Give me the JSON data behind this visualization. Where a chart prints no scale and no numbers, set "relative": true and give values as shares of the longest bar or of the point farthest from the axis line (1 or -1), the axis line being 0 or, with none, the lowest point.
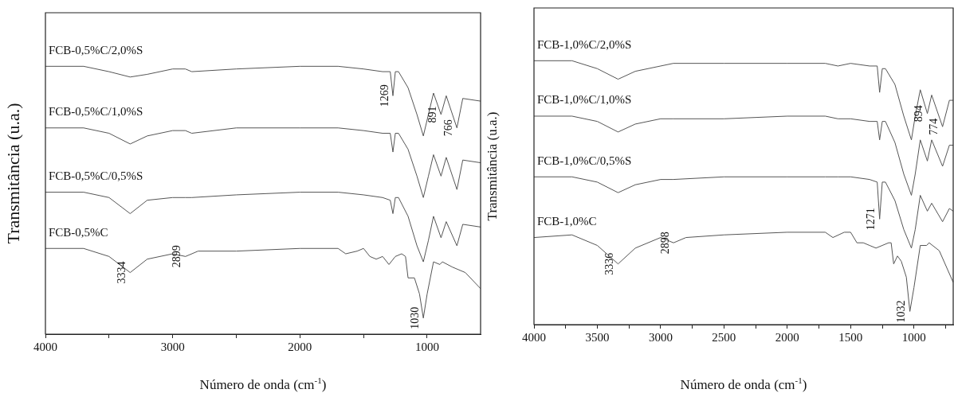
{
  "chart_data": [
    {
      "type": "line",
      "xlabel": "Número de onda (cm$^{-1}$)",
      "ylabel": "Transmitância (u.a.)",
      "relative": true,
      "xlim": [
        4000,
        580
      ],
      "xticks": [
        4000,
        {
          "value": 3500,
          "label": null
        },
        3000,
        {
          "value": 2500,
          "label": null
        },
        2000,
        {
          "value": 1500,
          "label": null
        },
        1000
      ],
      "grid": false,
      "legend": false,
      "annotations": [
        {
          "text": "3334",
          "x": 3334,
          "y": 0.23
        },
        {
          "text": "2899",
          "x": 2899,
          "y": 0.29
        },
        {
          "text": "1030",
          "x": 1030,
          "y": 0.06
        },
        {
          "text": "1269",
          "x": 1269,
          "y": 0.89
        },
        {
          "text": "891",
          "x": 891,
          "y": 0.82
        },
        {
          "text": "766",
          "x": 766,
          "y": 0.77
        }
      ],
      "series": [
        {
          "name": "FCB-0,5%C/2,0%S",
          "color": "#555555",
          "x": [
            4000,
            3700,
            3500,
            3334,
            3200,
            3000,
            2900,
            2850,
            2500,
            2000,
            1700,
            1500,
            1350,
            1290,
            1269,
            1250,
            1225,
            1150,
            1080,
            1030,
            990,
            950,
            891,
            850,
            766,
            720,
            580
          ],
          "values": [
            1.0,
            1.0,
            0.98,
            0.96,
            0.97,
            0.99,
            0.99,
            0.98,
            0.99,
            1.0,
            1.0,
            0.99,
            0.98,
            0.98,
            0.89,
            0.98,
            0.98,
            0.92,
            0.82,
            0.74,
            0.82,
            0.9,
            0.82,
            0.89,
            0.77,
            0.88,
            0.87
          ]
        },
        {
          "name": "FCB-0,5%C/1,0%S",
          "color": "#555555",
          "x": [
            4000,
            3700,
            3500,
            3334,
            3200,
            3000,
            2900,
            2850,
            2500,
            2000,
            1700,
            1500,
            1350,
            1290,
            1269,
            1250,
            1225,
            1150,
            1080,
            1030,
            990,
            950,
            891,
            850,
            766,
            720,
            580
          ],
          "values": [
            0.77,
            0.77,
            0.75,
            0.71,
            0.74,
            0.76,
            0.76,
            0.75,
            0.77,
            0.77,
            0.77,
            0.76,
            0.75,
            0.75,
            0.68,
            0.75,
            0.75,
            0.69,
            0.59,
            0.51,
            0.59,
            0.67,
            0.59,
            0.66,
            0.54,
            0.65,
            0.64
          ]
        },
        {
          "name": "FCB-0,5%C/0,5%S",
          "color": "#555555",
          "x": [
            4000,
            3700,
            3500,
            3334,
            3200,
            3000,
            2900,
            2850,
            2500,
            2000,
            1700,
            1500,
            1350,
            1290,
            1269,
            1250,
            1225,
            1150,
            1080,
            1030,
            990,
            950,
            891,
            850,
            766,
            720,
            580
          ],
          "values": [
            0.53,
            0.53,
            0.51,
            0.45,
            0.5,
            0.51,
            0.51,
            0.51,
            0.52,
            0.53,
            0.53,
            0.52,
            0.51,
            0.5,
            0.45,
            0.51,
            0.51,
            0.44,
            0.33,
            0.27,
            0.35,
            0.44,
            0.36,
            0.42,
            0.33,
            0.41,
            0.4
          ]
        },
        {
          "name": "FCB-0,5%C",
          "color": "#555555",
          "x": [
            4000,
            3700,
            3500,
            3334,
            3200,
            3000,
            2899,
            2800,
            2500,
            2000,
            1700,
            1640,
            1550,
            1500,
            1450,
            1400,
            1350,
            1300,
            1250,
            1200,
            1170,
            1150,
            1100,
            1060,
            1030,
            1000,
            950,
            900,
            880,
            800,
            700,
            580
          ],
          "values": [
            0.32,
            0.32,
            0.29,
            0.23,
            0.28,
            0.3,
            0.29,
            0.31,
            0.31,
            0.32,
            0.32,
            0.3,
            0.31,
            0.32,
            0.29,
            0.28,
            0.29,
            0.26,
            0.29,
            0.3,
            0.29,
            0.21,
            0.21,
            0.15,
            0.06,
            0.15,
            0.27,
            0.26,
            0.27,
            0.25,
            0.23,
            0.17
          ]
        }
      ]
    },
    {
      "type": "line",
      "xlabel": "Número de onda (cm$^{-1}$)",
      "ylabel": "Transmitância (u.a.)",
      "relative": true,
      "xlim": [
        4000,
        690
      ],
      "xticks": [
        4000,
        {
          "value": 3750,
          "label": null
        },
        3500,
        {
          "value": 3250,
          "label": null
        },
        3000,
        {
          "value": 2750,
          "label": null
        },
        2500,
        {
          "value": 2250,
          "label": null
        },
        2000,
        {
          "value": 1750,
          "label": null
        },
        1500,
        {
          "value": 1250,
          "label": null
        },
        1000,
        {
          "value": 750,
          "label": null
        }
      ],
      "grid": false,
      "legend": false,
      "annotations": [
        {
          "text": "3336",
          "x": 3336,
          "y": 0.23
        },
        {
          "text": "2898",
          "x": 2898,
          "y": 0.31
        },
        {
          "text": "1032",
          "x": 1032,
          "y": 0.05
        },
        {
          "text": "1271",
          "x": 1271,
          "y": 0.4
        },
        {
          "text": "894",
          "x": 894,
          "y": 0.8
        },
        {
          "text": "774",
          "x": 774,
          "y": 0.75
        }
      ],
      "series": [
        {
          "name": "FCB-1,0%C/2,0%S",
          "color": "#555555",
          "x": [
            4000,
            3700,
            3500,
            3336,
            3200,
            3000,
            2900,
            2500,
            2000,
            1700,
            1600,
            1500,
            1350,
            1290,
            1271,
            1250,
            1225,
            1150,
            1080,
            1020,
            990,
            950,
            894,
            860,
            774,
            720,
            690
          ],
          "values": [
            1.0,
            1.0,
            0.97,
            0.93,
            0.96,
            0.98,
            0.99,
            0.99,
            0.99,
            0.99,
            0.98,
            0.99,
            0.98,
            0.98,
            0.88,
            0.97,
            0.97,
            0.91,
            0.79,
            0.7,
            0.79,
            0.89,
            0.8,
            0.87,
            0.75,
            0.85,
            0.85
          ]
        },
        {
          "name": "FCB-1,0%C/1,0%S",
          "color": "#555555",
          "x": [
            4000,
            3700,
            3500,
            3336,
            3200,
            3000,
            2900,
            2500,
            2000,
            1700,
            1600,
            1500,
            1350,
            1290,
            1271,
            1250,
            1225,
            1150,
            1080,
            1020,
            990,
            950,
            894,
            860,
            774,
            720,
            690
          ],
          "values": [
            0.79,
            0.79,
            0.77,
            0.73,
            0.76,
            0.78,
            0.78,
            0.78,
            0.79,
            0.79,
            0.78,
            0.78,
            0.77,
            0.77,
            0.7,
            0.77,
            0.77,
            0.69,
            0.57,
            0.49,
            0.57,
            0.7,
            0.62,
            0.7,
            0.6,
            0.68,
            0.68
          ]
        },
        {
          "name": "FCB-1,0%C/0,5%S",
          "color": "#555555",
          "x": [
            4000,
            3700,
            3500,
            3336,
            3200,
            3000,
            2900,
            2500,
            2000,
            1700,
            1600,
            1500,
            1350,
            1290,
            1271,
            1250,
            1225,
            1150,
            1080,
            1020,
            990,
            950,
            894,
            860,
            774,
            720,
            690
          ],
          "values": [
            0.56,
            0.56,
            0.54,
            0.5,
            0.53,
            0.55,
            0.55,
            0.56,
            0.56,
            0.56,
            0.56,
            0.56,
            0.55,
            0.54,
            0.4,
            0.54,
            0.54,
            0.47,
            0.36,
            0.29,
            0.36,
            0.49,
            0.43,
            0.46,
            0.39,
            0.44,
            0.43
          ]
        },
        {
          "name": "FCB-1,0%C",
          "color": "#555555",
          "x": [
            4000,
            3700,
            3500,
            3336,
            3200,
            3000,
            2898,
            2800,
            2500,
            2000,
            1700,
            1640,
            1550,
            1500,
            1450,
            1400,
            1350,
            1300,
            1250,
            1200,
            1180,
            1160,
            1130,
            1100,
            1060,
            1032,
            1000,
            950,
            900,
            880,
            800,
            690
          ],
          "values": [
            0.33,
            0.34,
            0.3,
            0.23,
            0.29,
            0.33,
            0.31,
            0.33,
            0.34,
            0.35,
            0.35,
            0.33,
            0.35,
            0.35,
            0.31,
            0.31,
            0.3,
            0.29,
            0.3,
            0.31,
            0.31,
            0.23,
            0.26,
            0.24,
            0.18,
            0.05,
            0.14,
            0.3,
            0.3,
            0.31,
            0.28,
            0.16
          ]
        }
      ]
    }
  ]
}
